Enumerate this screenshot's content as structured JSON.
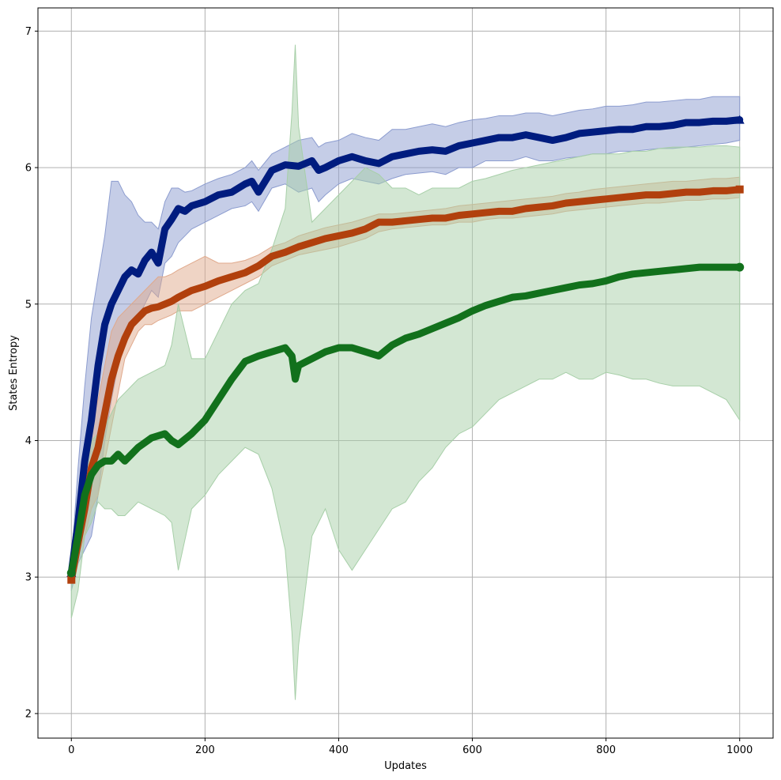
{
  "chart_data": {
    "type": "line",
    "title": "",
    "xlabel": "Updates",
    "ylabel": "States Entropy",
    "xlim": [
      -50,
      1050
    ],
    "ylim": [
      1.82,
      7.17
    ],
    "xticks": [
      0,
      200,
      400,
      600,
      800,
      1000
    ],
    "yticks": [
      2,
      3,
      4,
      5,
      6,
      7
    ],
    "xtick_labels": [
      "0",
      "200",
      "400",
      "600",
      "800",
      "1000"
    ],
    "ytick_labels": [
      "2",
      "3",
      "4",
      "5",
      "6",
      "7"
    ],
    "grid": true,
    "legend": "none",
    "series": [
      {
        "color": "#001c7f",
        "band_color": "#8c9ccf",
        "marker": "triangle",
        "x": [
          0,
          10,
          20,
          30,
          40,
          50,
          60,
          70,
          80,
          90,
          100,
          110,
          120,
          130,
          140,
          150,
          160,
          170,
          180,
          200,
          220,
          240,
          260,
          270,
          280,
          300,
          320,
          340,
          360,
          370,
          380,
          400,
          420,
          440,
          460,
          480,
          500,
          520,
          540,
          560,
          580,
          600,
          620,
          640,
          660,
          680,
          700,
          720,
          740,
          760,
          780,
          800,
          820,
          840,
          860,
          880,
          900,
          920,
          940,
          960,
          980,
          1000
        ],
        "y": [
          3.03,
          3.4,
          3.85,
          4.15,
          4.55,
          4.85,
          5.0,
          5.1,
          5.2,
          5.25,
          5.22,
          5.32,
          5.38,
          5.3,
          5.55,
          5.62,
          5.7,
          5.68,
          5.72,
          5.75,
          5.8,
          5.82,
          5.88,
          5.9,
          5.82,
          5.98,
          6.02,
          6.01,
          6.05,
          5.98,
          6.0,
          6.05,
          6.08,
          6.05,
          6.03,
          6.08,
          6.1,
          6.12,
          6.13,
          6.12,
          6.16,
          6.18,
          6.2,
          6.22,
          6.22,
          6.24,
          6.22,
          6.2,
          6.22,
          6.25,
          6.26,
          6.27,
          6.28,
          6.28,
          6.3,
          6.3,
          6.31,
          6.33,
          6.33,
          6.34,
          6.34,
          6.35
        ],
        "lower": [
          2.9,
          3.1,
          3.2,
          3.3,
          3.6,
          4.0,
          4.3,
          4.55,
          4.7,
          4.85,
          4.9,
          5.0,
          5.1,
          5.05,
          5.3,
          5.35,
          5.45,
          5.5,
          5.55,
          5.6,
          5.65,
          5.7,
          5.72,
          5.75,
          5.68,
          5.85,
          5.88,
          5.82,
          5.85,
          5.75,
          5.8,
          5.88,
          5.92,
          5.9,
          5.88,
          5.92,
          5.95,
          5.96,
          5.97,
          5.95,
          6.0,
          6.0,
          6.05,
          6.05,
          6.05,
          6.08,
          6.05,
          6.05,
          6.07,
          6.08,
          6.1,
          6.1,
          6.12,
          6.12,
          6.13,
          6.14,
          6.14,
          6.15,
          6.16,
          6.17,
          6.18,
          6.2
        ],
        "upper": [
          3.1,
          3.8,
          4.4,
          4.9,
          5.2,
          5.5,
          5.9,
          5.9,
          5.8,
          5.75,
          5.65,
          5.6,
          5.6,
          5.55,
          5.75,
          5.85,
          5.85,
          5.82,
          5.83,
          5.88,
          5.92,
          5.95,
          6.0,
          6.05,
          5.98,
          6.1,
          6.15,
          6.2,
          6.22,
          6.15,
          6.18,
          6.2,
          6.25,
          6.22,
          6.2,
          6.28,
          6.28,
          6.3,
          6.32,
          6.3,
          6.33,
          6.35,
          6.36,
          6.38,
          6.38,
          6.4,
          6.4,
          6.38,
          6.4,
          6.42,
          6.43,
          6.45,
          6.45,
          6.46,
          6.48,
          6.48,
          6.49,
          6.5,
          6.5,
          6.52,
          6.52,
          6.52
        ]
      },
      {
        "color": "#b1400d",
        "band_color": "#e0a98c",
        "marker": "square",
        "x": [
          0,
          10,
          20,
          30,
          40,
          50,
          60,
          70,
          80,
          90,
          100,
          110,
          120,
          130,
          140,
          150,
          160,
          180,
          200,
          220,
          240,
          260,
          280,
          300,
          320,
          340,
          360,
          380,
          400,
          420,
          440,
          460,
          480,
          500,
          520,
          540,
          560,
          580,
          600,
          620,
          640,
          660,
          680,
          700,
          720,
          740,
          760,
          780,
          800,
          820,
          840,
          860,
          880,
          900,
          920,
          940,
          960,
          980,
          1000
        ],
        "y": [
          2.98,
          3.25,
          3.5,
          3.8,
          3.95,
          4.2,
          4.45,
          4.62,
          4.75,
          4.85,
          4.9,
          4.95,
          4.97,
          4.98,
          5.0,
          5.02,
          5.05,
          5.1,
          5.13,
          5.17,
          5.2,
          5.23,
          5.28,
          5.35,
          5.38,
          5.42,
          5.45,
          5.48,
          5.5,
          5.52,
          5.55,
          5.6,
          5.6,
          5.61,
          5.62,
          5.63,
          5.63,
          5.65,
          5.66,
          5.67,
          5.68,
          5.68,
          5.7,
          5.71,
          5.72,
          5.74,
          5.75,
          5.76,
          5.77,
          5.78,
          5.79,
          5.8,
          5.8,
          5.81,
          5.82,
          5.82,
          5.83,
          5.83,
          5.84
        ],
        "lower": [
          2.95,
          3.15,
          3.3,
          3.5,
          3.6,
          3.85,
          4.1,
          4.35,
          4.6,
          4.7,
          4.8,
          4.85,
          4.85,
          4.88,
          4.9,
          4.92,
          4.95,
          4.95,
          5.0,
          5.05,
          5.1,
          5.15,
          5.2,
          5.28,
          5.32,
          5.36,
          5.38,
          5.4,
          5.42,
          5.45,
          5.48,
          5.53,
          5.55,
          5.56,
          5.57,
          5.58,
          5.58,
          5.6,
          5.6,
          5.62,
          5.63,
          5.63,
          5.64,
          5.65,
          5.66,
          5.68,
          5.69,
          5.7,
          5.71,
          5.72,
          5.73,
          5.74,
          5.74,
          5.75,
          5.76,
          5.76,
          5.77,
          5.77,
          5.78
        ],
        "upper": [
          3.02,
          3.4,
          3.75,
          4.1,
          4.3,
          4.55,
          4.8,
          4.9,
          4.95,
          5.0,
          5.05,
          5.1,
          5.15,
          5.2,
          5.2,
          5.22,
          5.25,
          5.3,
          5.35,
          5.3,
          5.3,
          5.32,
          5.36,
          5.42,
          5.45,
          5.5,
          5.53,
          5.56,
          5.58,
          5.6,
          5.63,
          5.66,
          5.66,
          5.67,
          5.68,
          5.69,
          5.7,
          5.72,
          5.73,
          5.74,
          5.75,
          5.76,
          5.77,
          5.78,
          5.79,
          5.81,
          5.82,
          5.84,
          5.85,
          5.86,
          5.87,
          5.88,
          5.89,
          5.9,
          5.9,
          5.91,
          5.92,
          5.92,
          5.93
        ]
      },
      {
        "color": "#12711c",
        "band_color": "#a7cfa8",
        "marker": "circle",
        "x": [
          0,
          10,
          20,
          30,
          40,
          50,
          60,
          70,
          80,
          90,
          100,
          120,
          140,
          150,
          160,
          180,
          200,
          220,
          240,
          260,
          280,
          300,
          320,
          330,
          335,
          340,
          360,
          380,
          400,
          420,
          440,
          460,
          480,
          500,
          520,
          540,
          560,
          580,
          600,
          620,
          640,
          660,
          680,
          700,
          720,
          740,
          760,
          780,
          800,
          820,
          840,
          860,
          880,
          900,
          920,
          940,
          960,
          980,
          1000
        ],
        "y": [
          3.03,
          3.3,
          3.6,
          3.75,
          3.82,
          3.85,
          3.85,
          3.9,
          3.85,
          3.9,
          3.95,
          4.02,
          4.05,
          4.0,
          3.97,
          4.05,
          4.15,
          4.3,
          4.45,
          4.58,
          4.62,
          4.65,
          4.68,
          4.62,
          4.45,
          4.55,
          4.6,
          4.65,
          4.68,
          4.68,
          4.65,
          4.62,
          4.7,
          4.75,
          4.78,
          4.82,
          4.86,
          4.9,
          4.95,
          4.99,
          5.02,
          5.05,
          5.06,
          5.08,
          5.1,
          5.12,
          5.14,
          5.15,
          5.17,
          5.2,
          5.22,
          5.23,
          5.24,
          5.25,
          5.26,
          5.27,
          5.27,
          5.27,
          5.27
        ],
        "lower": [
          2.7,
          2.9,
          3.3,
          3.4,
          3.55,
          3.5,
          3.5,
          3.45,
          3.45,
          3.5,
          3.55,
          3.5,
          3.45,
          3.4,
          3.05,
          3.5,
          3.6,
          3.75,
          3.85,
          3.95,
          3.9,
          3.65,
          3.2,
          2.6,
          2.1,
          2.5,
          3.3,
          3.5,
          3.2,
          3.05,
          3.2,
          3.35,
          3.5,
          3.55,
          3.7,
          3.8,
          3.95,
          4.05,
          4.1,
          4.2,
          4.3,
          4.35,
          4.4,
          4.45,
          4.45,
          4.5,
          4.45,
          4.45,
          4.5,
          4.48,
          4.45,
          4.45,
          4.42,
          4.4,
          4.4,
          4.4,
          4.35,
          4.3,
          4.15
        ],
        "upper": [
          3.2,
          3.6,
          3.9,
          4.0,
          4.05,
          4.1,
          4.2,
          4.3,
          4.35,
          4.4,
          4.45,
          4.5,
          4.55,
          4.7,
          5.0,
          4.6,
          4.6,
          4.8,
          5.0,
          5.1,
          5.15,
          5.4,
          5.7,
          6.4,
          6.9,
          6.3,
          5.6,
          5.7,
          5.8,
          5.9,
          6.0,
          5.95,
          5.85,
          5.85,
          5.8,
          5.85,
          5.85,
          5.85,
          5.9,
          5.92,
          5.95,
          5.98,
          6.0,
          6.02,
          6.04,
          6.06,
          6.08,
          6.1,
          6.1,
          6.1,
          6.12,
          6.12,
          6.14,
          6.15,
          6.15,
          6.15,
          6.16,
          6.16,
          6.15
        ]
      }
    ]
  }
}
